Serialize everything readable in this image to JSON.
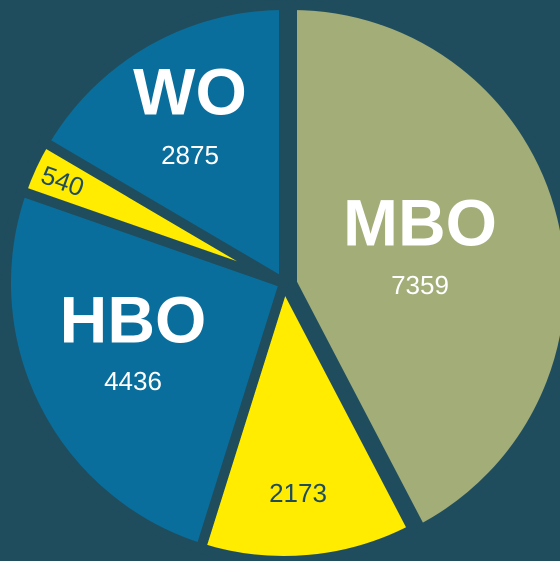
{
  "chart_data": {
    "type": "pie",
    "categories": [
      "MBO",
      null,
      "HBO",
      null,
      "WO"
    ],
    "values": [
      7359,
      2173,
      4436,
      540,
      2875
    ],
    "colors": [
      "#a2ad78",
      "#ffec00",
      "#0a6e9c",
      "#ffec00",
      "#0a6e9c"
    ]
  }
}
